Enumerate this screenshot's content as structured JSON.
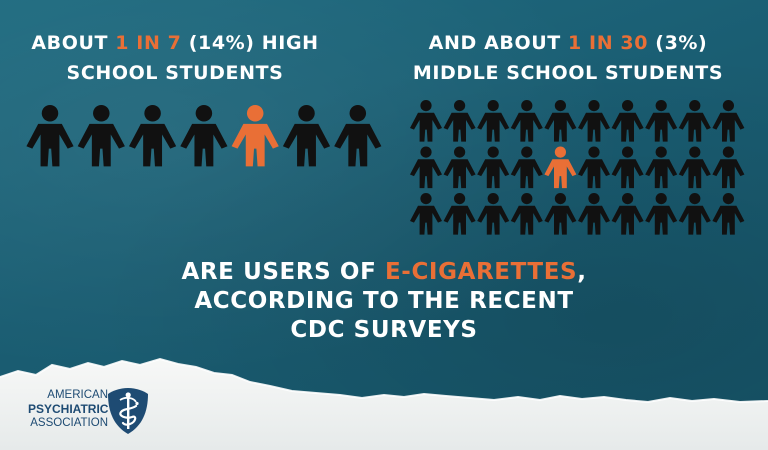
{
  "left_heading": {
    "line1_pre": "ABOUT ",
    "line1_accent": "1 IN 7",
    "line1_post": " (14%) HIGH",
    "line2": "SCHOOL STUDENTS"
  },
  "right_heading": {
    "line1_pre": "AND ABOUT ",
    "line1_accent": "1 IN 30",
    "line1_post": " (3%)",
    "line2": "MIDDLE SCHOOL STUDENTS"
  },
  "high_school_icons": {
    "count": 7,
    "highlighted_index": 4
  },
  "middle_school_icons": {
    "rows": 3,
    "cols": 10,
    "highlighted_row": 1,
    "highlighted_col": 4
  },
  "tagline": {
    "line1_pre": "ARE USERS OF ",
    "line1_accent": "E-CIGARETTES",
    "line1_post": ",",
    "line2": "ACCORDING TO THE RECENT",
    "line3": "CDC SURVEYS"
  },
  "logo": {
    "line1": "AMERICAN",
    "line2": "PSYCHIATRIC",
    "line3": "ASSOCIATION",
    "mark_icon": "caduceus-icon"
  },
  "colors": {
    "background": "#1a5f73",
    "figure": "#111111",
    "accent": "#e96f36",
    "paper": "#eef1f0",
    "logo_blue": "#1e4b73"
  }
}
